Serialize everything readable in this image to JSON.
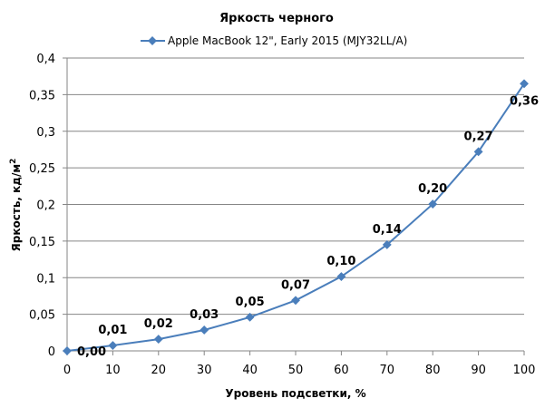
{
  "chart_data": {
    "type": "line",
    "title": "Яркость черного",
    "xlabel": "Уровень подсветки, %",
    "ylabel": "Яркость, кд/м",
    "ylabel_superscript": "2",
    "xlim": [
      0,
      100
    ],
    "ylim": [
      0,
      0.4
    ],
    "x_ticks": [
      "0",
      "10",
      "20",
      "30",
      "40",
      "50",
      "60",
      "70",
      "80",
      "90",
      "100"
    ],
    "y_ticks": [
      "0",
      "0,05",
      "0,1",
      "0,15",
      "0,2",
      "0,25",
      "0,3",
      "0,35",
      "0,4"
    ],
    "grid": "horizontal",
    "legend_position": "top",
    "series": [
      {
        "name": "Apple MacBook 12\", Early 2015 (MJY32LL/A)",
        "color": "#4a7ebb",
        "x": [
          0,
          10,
          20,
          30,
          40,
          50,
          60,
          70,
          80,
          90,
          100
        ],
        "y": [
          0,
          0.0074,
          0.016,
          0.0285,
          0.046,
          0.069,
          0.1015,
          0.145,
          0.2005,
          0.272,
          0.365
        ],
        "labels": [
          "0,00",
          "0,01",
          "0,02",
          "0,03",
          "0,05",
          "0,07",
          "0,10",
          "0,14",
          "0,20",
          "0,27",
          "0,36"
        ],
        "label_positions": [
          "right",
          "above",
          "above",
          "above",
          "above",
          "above",
          "above",
          "above",
          "above",
          "above",
          "below"
        ]
      }
    ]
  }
}
